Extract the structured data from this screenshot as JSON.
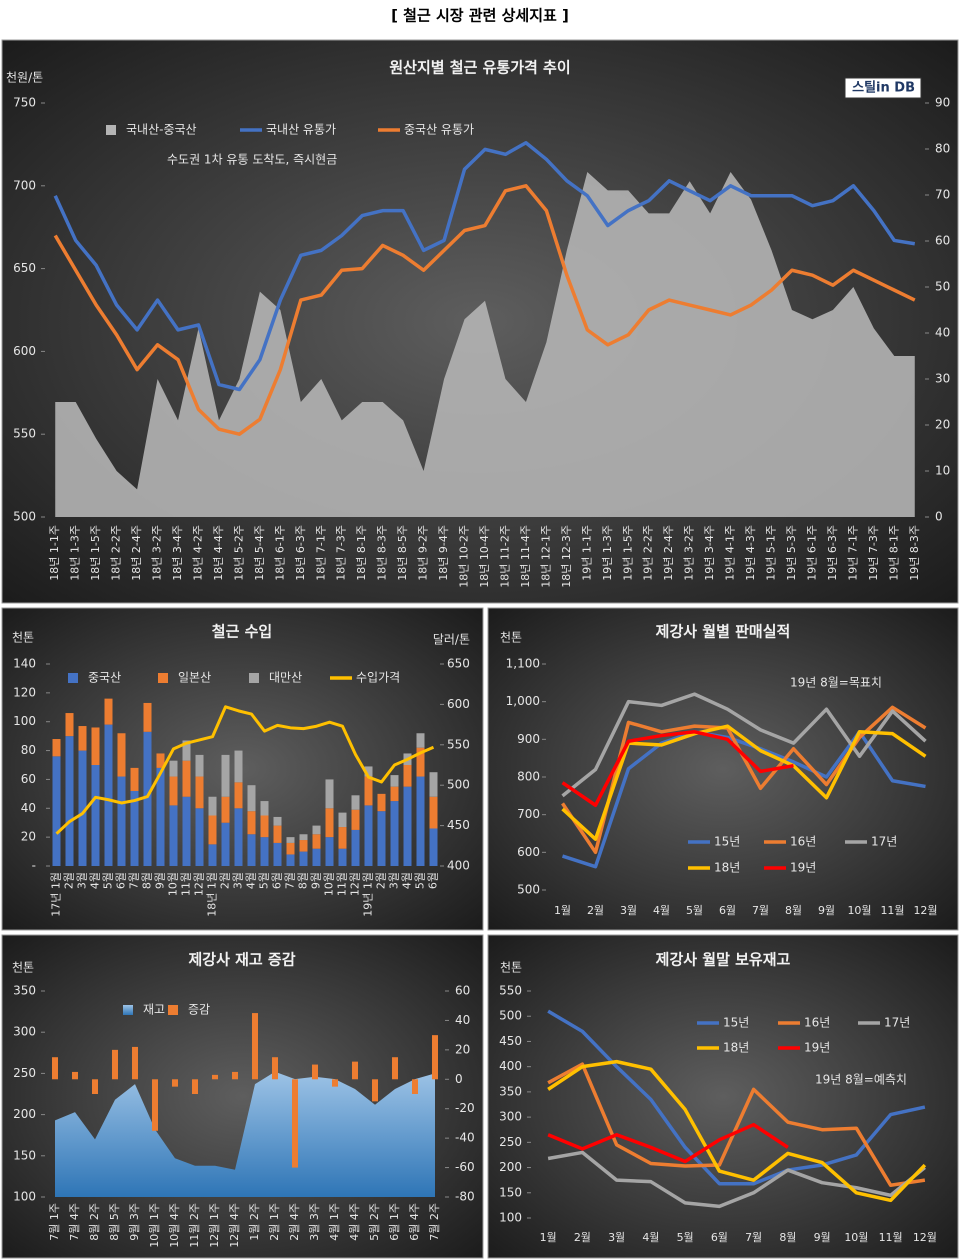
{
  "title": "[ 철근 시장 관련 상세지표 ]",
  "chart_data": [
    {
      "type": "combo",
      "title": "원산지별 철근 유통가격 추이",
      "ylabel": "천원/톤",
      "annotations": [
        "수도권 1차 유통 도착도, 즉시현금",
        "스틸in DB"
      ],
      "categories": [
        "18년 1-1주",
        "18년 1-3주",
        "18년 1-5주",
        "18년 2-2주",
        "18년 2-4주",
        "18년 3-2주",
        "18년 3-4주",
        "18년 4-2주",
        "18년 4-4주",
        "18년 5-2주",
        "18년 5-4주",
        "18년 6-1주",
        "18년 6-3주",
        "18년 7-1주",
        "18년 7-3주",
        "18년 8-1주",
        "18년 8-3주",
        "18년 8-5주",
        "18년 9-2주",
        "18년 9-4주",
        "18년 10-2주",
        "18년 10-4주",
        "18년 11-2주",
        "18년 11-4주",
        "18년 12-1주",
        "18년 12-3주",
        "19년 1-1주",
        "19년 1-3주",
        "19년 1-5주",
        "19년 2-2주",
        "19년 2-4주",
        "19년 3-2주",
        "19년 3-4주",
        "19년 4-1주",
        "19년 4-3주",
        "19년 5-1주",
        "19년 5-3주",
        "19년 6-1주",
        "19년 6-3주",
        "19년 7-1주",
        "19년 7-3주",
        "19년 8-1주",
        "19년 8-3주"
      ],
      "series": [
        {
          "name": "국내산-중국산",
          "type": "area",
          "axis": "y2",
          "color": "#b4b4b4",
          "values": [
            25,
            25,
            17,
            10,
            6,
            30,
            21,
            41,
            21,
            30,
            49,
            45,
            25,
            30,
            21,
            25,
            25,
            21,
            10,
            30,
            43,
            47,
            30,
            25,
            38,
            58,
            75,
            71,
            71,
            66,
            66,
            73,
            66,
            75,
            69,
            58,
            45,
            43,
            45,
            50,
            41,
            35,
            35
          ]
        },
        {
          "name": "국내산 유통가",
          "type": "line",
          "color": "#4472c4",
          "values": [
            694,
            667,
            652,
            628,
            613,
            631,
            613,
            616,
            580,
            577,
            595,
            631,
            658,
            661,
            670,
            682,
            685,
            685,
            661,
            667,
            710,
            722,
            719,
            726,
            716,
            703,
            694,
            676,
            685,
            691,
            703,
            697,
            691,
            700,
            694,
            694,
            694,
            688,
            691,
            700,
            685,
            667,
            665
          ]
        },
        {
          "name": "중국산 유통가",
          "type": "line",
          "color": "#ed7d31",
          "values": [
            670,
            649,
            628,
            610,
            589,
            604,
            595,
            565,
            553,
            550,
            559,
            589,
            631,
            634,
            649,
            650,
            664,
            658,
            649,
            661,
            673,
            676,
            697,
            700,
            685,
            646,
            613,
            604,
            610,
            625,
            631,
            628,
            625,
            622,
            628,
            637,
            649,
            646,
            640,
            649,
            643,
            637,
            631
          ]
        }
      ],
      "ylim": [
        500,
        750
      ],
      "yticks": [
        500,
        550,
        600,
        650,
        700,
        750
      ],
      "y2lim": [
        0,
        90
      ],
      "y2ticks": [
        0,
        10,
        20,
        30,
        40,
        50,
        60,
        70,
        80,
        90
      ]
    },
    {
      "type": "combo",
      "title": "철근 수입",
      "ylabel": "천톤",
      "y2label": "달러/톤",
      "stacked": true,
      "categories": [
        "17년 1월",
        "2월",
        "3월",
        "4월",
        "5월",
        "6월",
        "7월",
        "8월",
        "9월",
        "10월",
        "11월",
        "12월",
        "18년 1월",
        "2월",
        "3월",
        "4월",
        "5월",
        "6월",
        "7월",
        "8월",
        "9월",
        "10월",
        "11월",
        "12월",
        "19년 1월",
        "2월",
        "3월",
        "4월",
        "5월",
        "6월"
      ],
      "series": [
        {
          "name": "중국산",
          "type": "bar",
          "color": "#4472c4",
          "values": [
            76,
            90,
            80,
            70,
            98,
            62,
            52,
            93,
            68,
            42,
            48,
            40,
            15,
            30,
            40,
            22,
            20,
            16,
            8,
            10,
            12,
            20,
            12,
            25,
            42,
            38,
            45,
            55,
            62,
            26
          ]
        },
        {
          "name": "일본산",
          "type": "bar",
          "color": "#ed7d31",
          "values": [
            12,
            16,
            17,
            26,
            18,
            30,
            16,
            20,
            10,
            20,
            25,
            22,
            20,
            18,
            18,
            16,
            15,
            12,
            8,
            8,
            10,
            20,
            15,
            14,
            20,
            12,
            10,
            15,
            20,
            22
          ]
        },
        {
          "name": "대만산",
          "type": "bar",
          "color": "#a5a5a5",
          "values": [
            0,
            0,
            0,
            0,
            0,
            0,
            0,
            0,
            0,
            11,
            14,
            15,
            13,
            29,
            22,
            18,
            10,
            6,
            4,
            4,
            6,
            20,
            10,
            10,
            7,
            0,
            8,
            8,
            10,
            17
          ]
        },
        {
          "name": "수입가격",
          "type": "line",
          "axis": "y2",
          "color": "#ffc000",
          "values": [
            440,
            455,
            465,
            485,
            482,
            478,
            481,
            486,
            515,
            545,
            552,
            556,
            560,
            597,
            592,
            588,
            567,
            574,
            571,
            570,
            573,
            578,
            573,
            538,
            510,
            504,
            525,
            532,
            540,
            547
          ]
        }
      ],
      "ylim": [
        0,
        140
      ],
      "yticks": [
        {
          "value": 0,
          "label": "-"
        },
        20,
        40,
        60,
        80,
        100,
        120,
        140
      ],
      "y2lim": [
        400,
        650
      ],
      "y2ticks": [
        400,
        450,
        500,
        550,
        600,
        650
      ]
    },
    {
      "type": "line",
      "title": "제강사 월별 판매실적",
      "ylabel": "천톤",
      "annotations": [
        "19년 8월=목표치"
      ],
      "categories": [
        "1월",
        "2월",
        "3월",
        "4월",
        "5월",
        "6월",
        "7월",
        "8월",
        "9월",
        "10월",
        "11월",
        "12월"
      ],
      "series": [
        {
          "name": "15년",
          "color": "#4472c4",
          "values": [
            590,
            562,
            822,
            890,
            920,
            905,
            875,
            840,
            800,
            920,
            790,
            775
          ]
        },
        {
          "name": "16년",
          "color": "#ed7d31",
          "values": [
            730,
            600,
            945,
            920,
            935,
            930,
            770,
            875,
            780,
            905,
            985,
            930
          ]
        },
        {
          "name": "17년",
          "color": "#a5a5a5",
          "values": [
            750,
            820,
            1000,
            990,
            1020,
            980,
            925,
            890,
            980,
            855,
            975,
            895
          ]
        },
        {
          "name": "18년",
          "color": "#ffc000",
          "values": [
            715,
            635,
            890,
            885,
            915,
            935,
            870,
            830,
            745,
            920,
            915,
            855
          ]
        },
        {
          "name": "19년",
          "color": "#ff0000",
          "values": [
            785,
            725,
            895,
            910,
            920,
            900,
            815,
            830,
            null,
            null,
            null,
            null
          ]
        }
      ],
      "ylim": [
        500,
        1100
      ],
      "yticks": [
        500,
        600,
        700,
        800,
        900,
        {
          "value": 1000,
          "label": "1,000"
        },
        {
          "value": 1100,
          "label": "1,100"
        }
      ]
    },
    {
      "type": "combo",
      "title": "제강사 재고 증감",
      "ylabel": "천톤",
      "categories": [
        "7월 1주",
        "7월 4주",
        "8월 2주",
        "8월 5주",
        "9월 3주",
        "10월 1주",
        "10월 4주",
        "11월 2주",
        "12월 1주",
        "12월 4주",
        "1월 2주",
        "2월 1주",
        "2월 4주",
        "3월 3주",
        "4월 1주",
        "4월 4주",
        "5월 2주",
        "6월 1주",
        "6월 4주",
        "7월 2주"
      ],
      "series": [
        {
          "name": "재고",
          "type": "area",
          "color": "#5b9bd5",
          "values": [
            193,
            203,
            170,
            218,
            237,
            182,
            147,
            138,
            138,
            133,
            237,
            252,
            243,
            246,
            243,
            231,
            212,
            231,
            243,
            250
          ]
        },
        {
          "name": "증감",
          "type": "bar",
          "axis": "y2",
          "color": "#ed7d31",
          "values": [
            15,
            5,
            -10,
            20,
            22,
            -35,
            -5,
            -10,
            3,
            5,
            45,
            15,
            -60,
            10,
            -5,
            12,
            -15,
            15,
            -10,
            30
          ]
        }
      ],
      "ylim": [
        100,
        350
      ],
      "yticks": [
        100,
        150,
        200,
        250,
        300,
        350
      ],
      "y2lim": [
        -80,
        60
      ],
      "y2ticks": [
        -80,
        -60,
        -40,
        -20,
        0,
        20,
        40,
        60
      ]
    },
    {
      "type": "line",
      "title": "제강사 월말 보유재고",
      "ylabel": "천톤",
      "annotations": [
        "19년 8월=예측치"
      ],
      "categories": [
        "1월",
        "2월",
        "3월",
        "4월",
        "5월",
        "6월",
        "7월",
        "8월",
        "9월",
        "10월",
        "11월",
        "12월"
      ],
      "series": [
        {
          "name": "15년",
          "color": "#4472c4",
          "values": [
            510,
            470,
            400,
            335,
            240,
            168,
            168,
            195,
            205,
            225,
            305,
            320
          ]
        },
        {
          "name": "16년",
          "color": "#ed7d31",
          "values": [
            368,
            405,
            245,
            208,
            203,
            205,
            355,
            290,
            275,
            278,
            165,
            175
          ]
        },
        {
          "name": "17년",
          "color": "#a5a5a5",
          "values": [
            218,
            230,
            175,
            172,
            130,
            123,
            150,
            195,
            170,
            160,
            145,
            200
          ]
        },
        {
          "name": "18년",
          "color": "#ffc000",
          "values": [
            355,
            400,
            410,
            395,
            315,
            193,
            175,
            228,
            210,
            150,
            135,
            205
          ]
        },
        {
          "name": "19년",
          "color": "#ff0000",
          "values": [
            265,
            237,
            265,
            240,
            212,
            255,
            285,
            240,
            null,
            null,
            null,
            null
          ]
        }
      ],
      "ylim": [
        100,
        550
      ],
      "yticks": [
        100,
        150,
        200,
        250,
        300,
        350,
        400,
        450,
        500,
        550
      ]
    }
  ]
}
